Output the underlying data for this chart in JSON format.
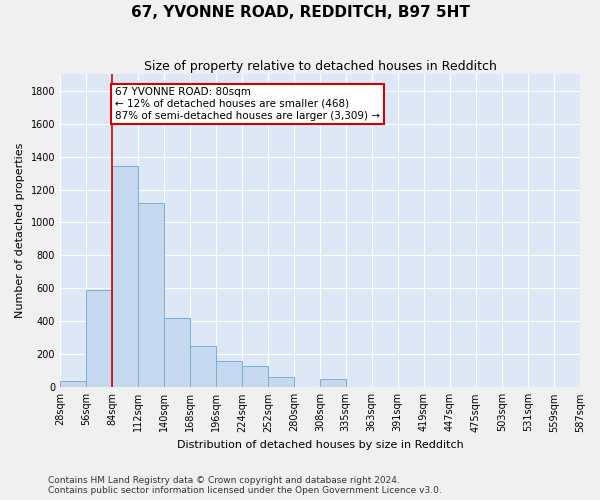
{
  "title": "67, YVONNE ROAD, REDDITCH, B97 5HT",
  "subtitle": "Size of property relative to detached houses in Redditch",
  "xlabel": "Distribution of detached houses by size in Redditch",
  "ylabel": "Number of detached properties",
  "footer_line1": "Contains HM Land Registry data © Crown copyright and database right 2024.",
  "footer_line2": "Contains public sector information licensed under the Open Government Licence v3.0.",
  "bin_edges": [
    28,
    56,
    84,
    112,
    140,
    168,
    196,
    224,
    252,
    280,
    308,
    335,
    363,
    391,
    419,
    447,
    475,
    503,
    531,
    559,
    587
  ],
  "bar_values": [
    40,
    590,
    1340,
    1120,
    420,
    250,
    160,
    130,
    60,
    0,
    50,
    0,
    0,
    0,
    0,
    0,
    0,
    0,
    0,
    0
  ],
  "bar_color": "#c5d8ee",
  "bar_edgecolor": "#7aadd4",
  "property_line_x": 84,
  "property_line_color": "#cc0000",
  "annotation_line1": "67 YVONNE ROAD: 80sqm",
  "annotation_line2": "← 12% of detached houses are smaller (468)",
  "annotation_line3": "87% of semi-detached houses are larger (3,309) →",
  "annotation_box_color": "#cc0000",
  "annotation_bg": "#ffffff",
  "ylim": [
    0,
    1900
  ],
  "yticks": [
    0,
    200,
    400,
    600,
    800,
    1000,
    1200,
    1400,
    1600,
    1800
  ],
  "background_color": "#dce8f5",
  "grid_color": "#ffffff",
  "title_fontsize": 11,
  "subtitle_fontsize": 9,
  "label_fontsize": 8,
  "tick_fontsize": 7,
  "footer_fontsize": 6.5
}
